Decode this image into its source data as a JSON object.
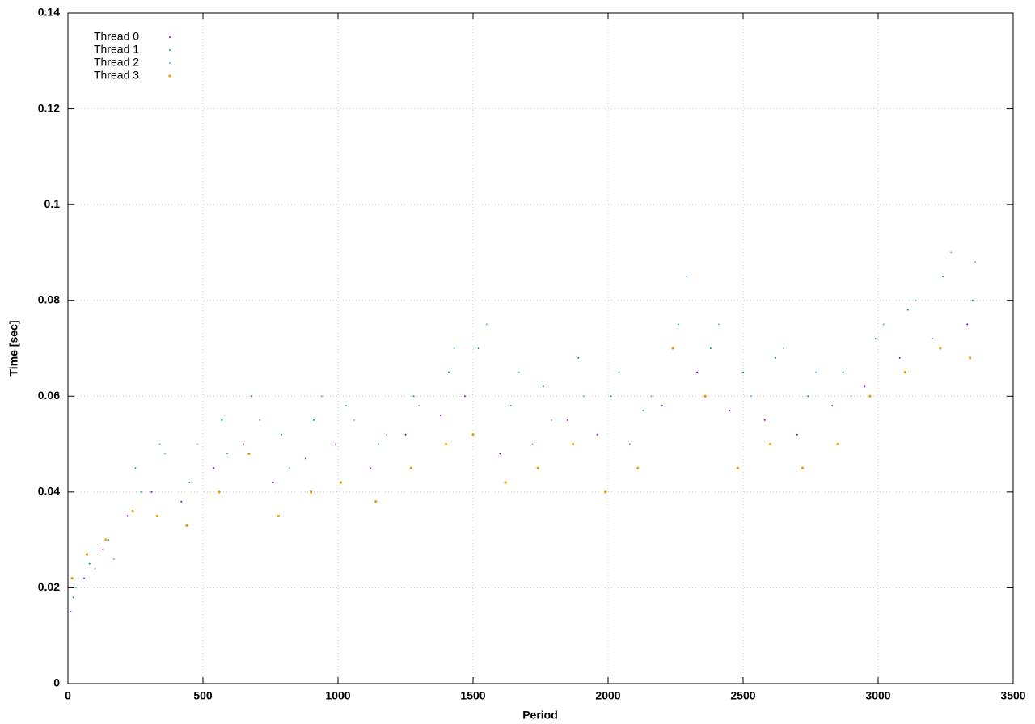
{
  "chart_data": {
    "type": "scatter",
    "xlabel": "Period",
    "ylabel": "Time [sec]",
    "xlim": [
      0,
      3500
    ],
    "xticks": [
      0,
      500,
      1000,
      1500,
      2000,
      2500,
      3000,
      3500
    ],
    "ylim": [
      0,
      0.14
    ],
    "yticks": [
      0,
      0.02,
      0.04,
      0.06,
      0.08,
      0.1,
      0.12,
      0.14
    ],
    "grid": true,
    "legend": "top-left",
    "series": [
      {
        "name": "Thread 0",
        "color": "#9400d3",
        "x": [
          10,
          60,
          130,
          220,
          310,
          420,
          540,
          650,
          760,
          880,
          990,
          1120,
          1250,
          1380,
          1470,
          1600,
          1720,
          1850,
          1960,
          2080,
          2200,
          2330,
          2450,
          2580,
          2700,
          2830,
          2950,
          3080,
          3200,
          3330
        ],
        "values": [
          0.015,
          0.022,
          0.028,
          0.035,
          0.04,
          0.038,
          0.045,
          0.05,
          0.042,
          0.047,
          0.05,
          0.045,
          0.052,
          0.056,
          0.06,
          0.048,
          0.05,
          0.055,
          0.052,
          0.05,
          0.058,
          0.065,
          0.057,
          0.055,
          0.052,
          0.058,
          0.062,
          0.068,
          0.072,
          0.075
        ]
      },
      {
        "name": "Thread 1",
        "color": "#009e73",
        "x": [
          20,
          80,
          150,
          250,
          340,
          450,
          570,
          680,
          790,
          910,
          1030,
          1150,
          1280,
          1410,
          1520,
          1640,
          1760,
          1890,
          2010,
          2130,
          2260,
          2380,
          2500,
          2620,
          2740,
          2870,
          2990,
          3110,
          3240,
          3350
        ],
        "values": [
          0.018,
          0.025,
          0.03,
          0.045,
          0.05,
          0.042,
          0.055,
          0.06,
          0.052,
          0.055,
          0.058,
          0.05,
          0.06,
          0.065,
          0.07,
          0.058,
          0.062,
          0.068,
          0.06,
          0.057,
          0.075,
          0.07,
          0.065,
          0.068,
          0.06,
          0.065,
          0.072,
          0.078,
          0.085,
          0.08
        ]
      },
      {
        "name": "Thread 2",
        "color": "#56b4e9",
        "x": [
          30,
          100,
          170,
          270,
          360,
          480,
          590,
          710,
          820,
          940,
          1060,
          1180,
          1300,
          1430,
          1550,
          1670,
          1790,
          1910,
          2040,
          2160,
          2290,
          2410,
          2530,
          2650,
          2770,
          2900,
          3020,
          3140,
          3270,
          3360
        ],
        "values": [
          0.02,
          0.024,
          0.026,
          0.04,
          0.048,
          0.05,
          0.048,
          0.055,
          0.045,
          0.06,
          0.055,
          0.052,
          0.058,
          0.07,
          0.075,
          0.065,
          0.055,
          0.06,
          0.065,
          0.06,
          0.085,
          0.075,
          0.06,
          0.07,
          0.065,
          0.06,
          0.075,
          0.08,
          0.09,
          0.088
        ]
      },
      {
        "name": "Thread 3",
        "color": "#e69f00",
        "x": [
          15,
          70,
          140,
          240,
          330,
          440,
          560,
          670,
          780,
          900,
          1010,
          1140,
          1270,
          1400,
          1500,
          1620,
          1740,
          1870,
          1990,
          2110,
          2240,
          2360,
          2480,
          2600,
          2720,
          2850,
          2970,
          3100,
          3230,
          3340
        ],
        "values": [
          0.022,
          0.027,
          0.03,
          0.036,
          0.035,
          0.033,
          0.04,
          0.048,
          0.035,
          0.04,
          0.042,
          0.038,
          0.045,
          0.05,
          0.052,
          0.042,
          0.045,
          0.05,
          0.04,
          0.045,
          0.07,
          0.06,
          0.045,
          0.05,
          0.045,
          0.05,
          0.06,
          0.065,
          0.07,
          0.068
        ]
      }
    ]
  }
}
